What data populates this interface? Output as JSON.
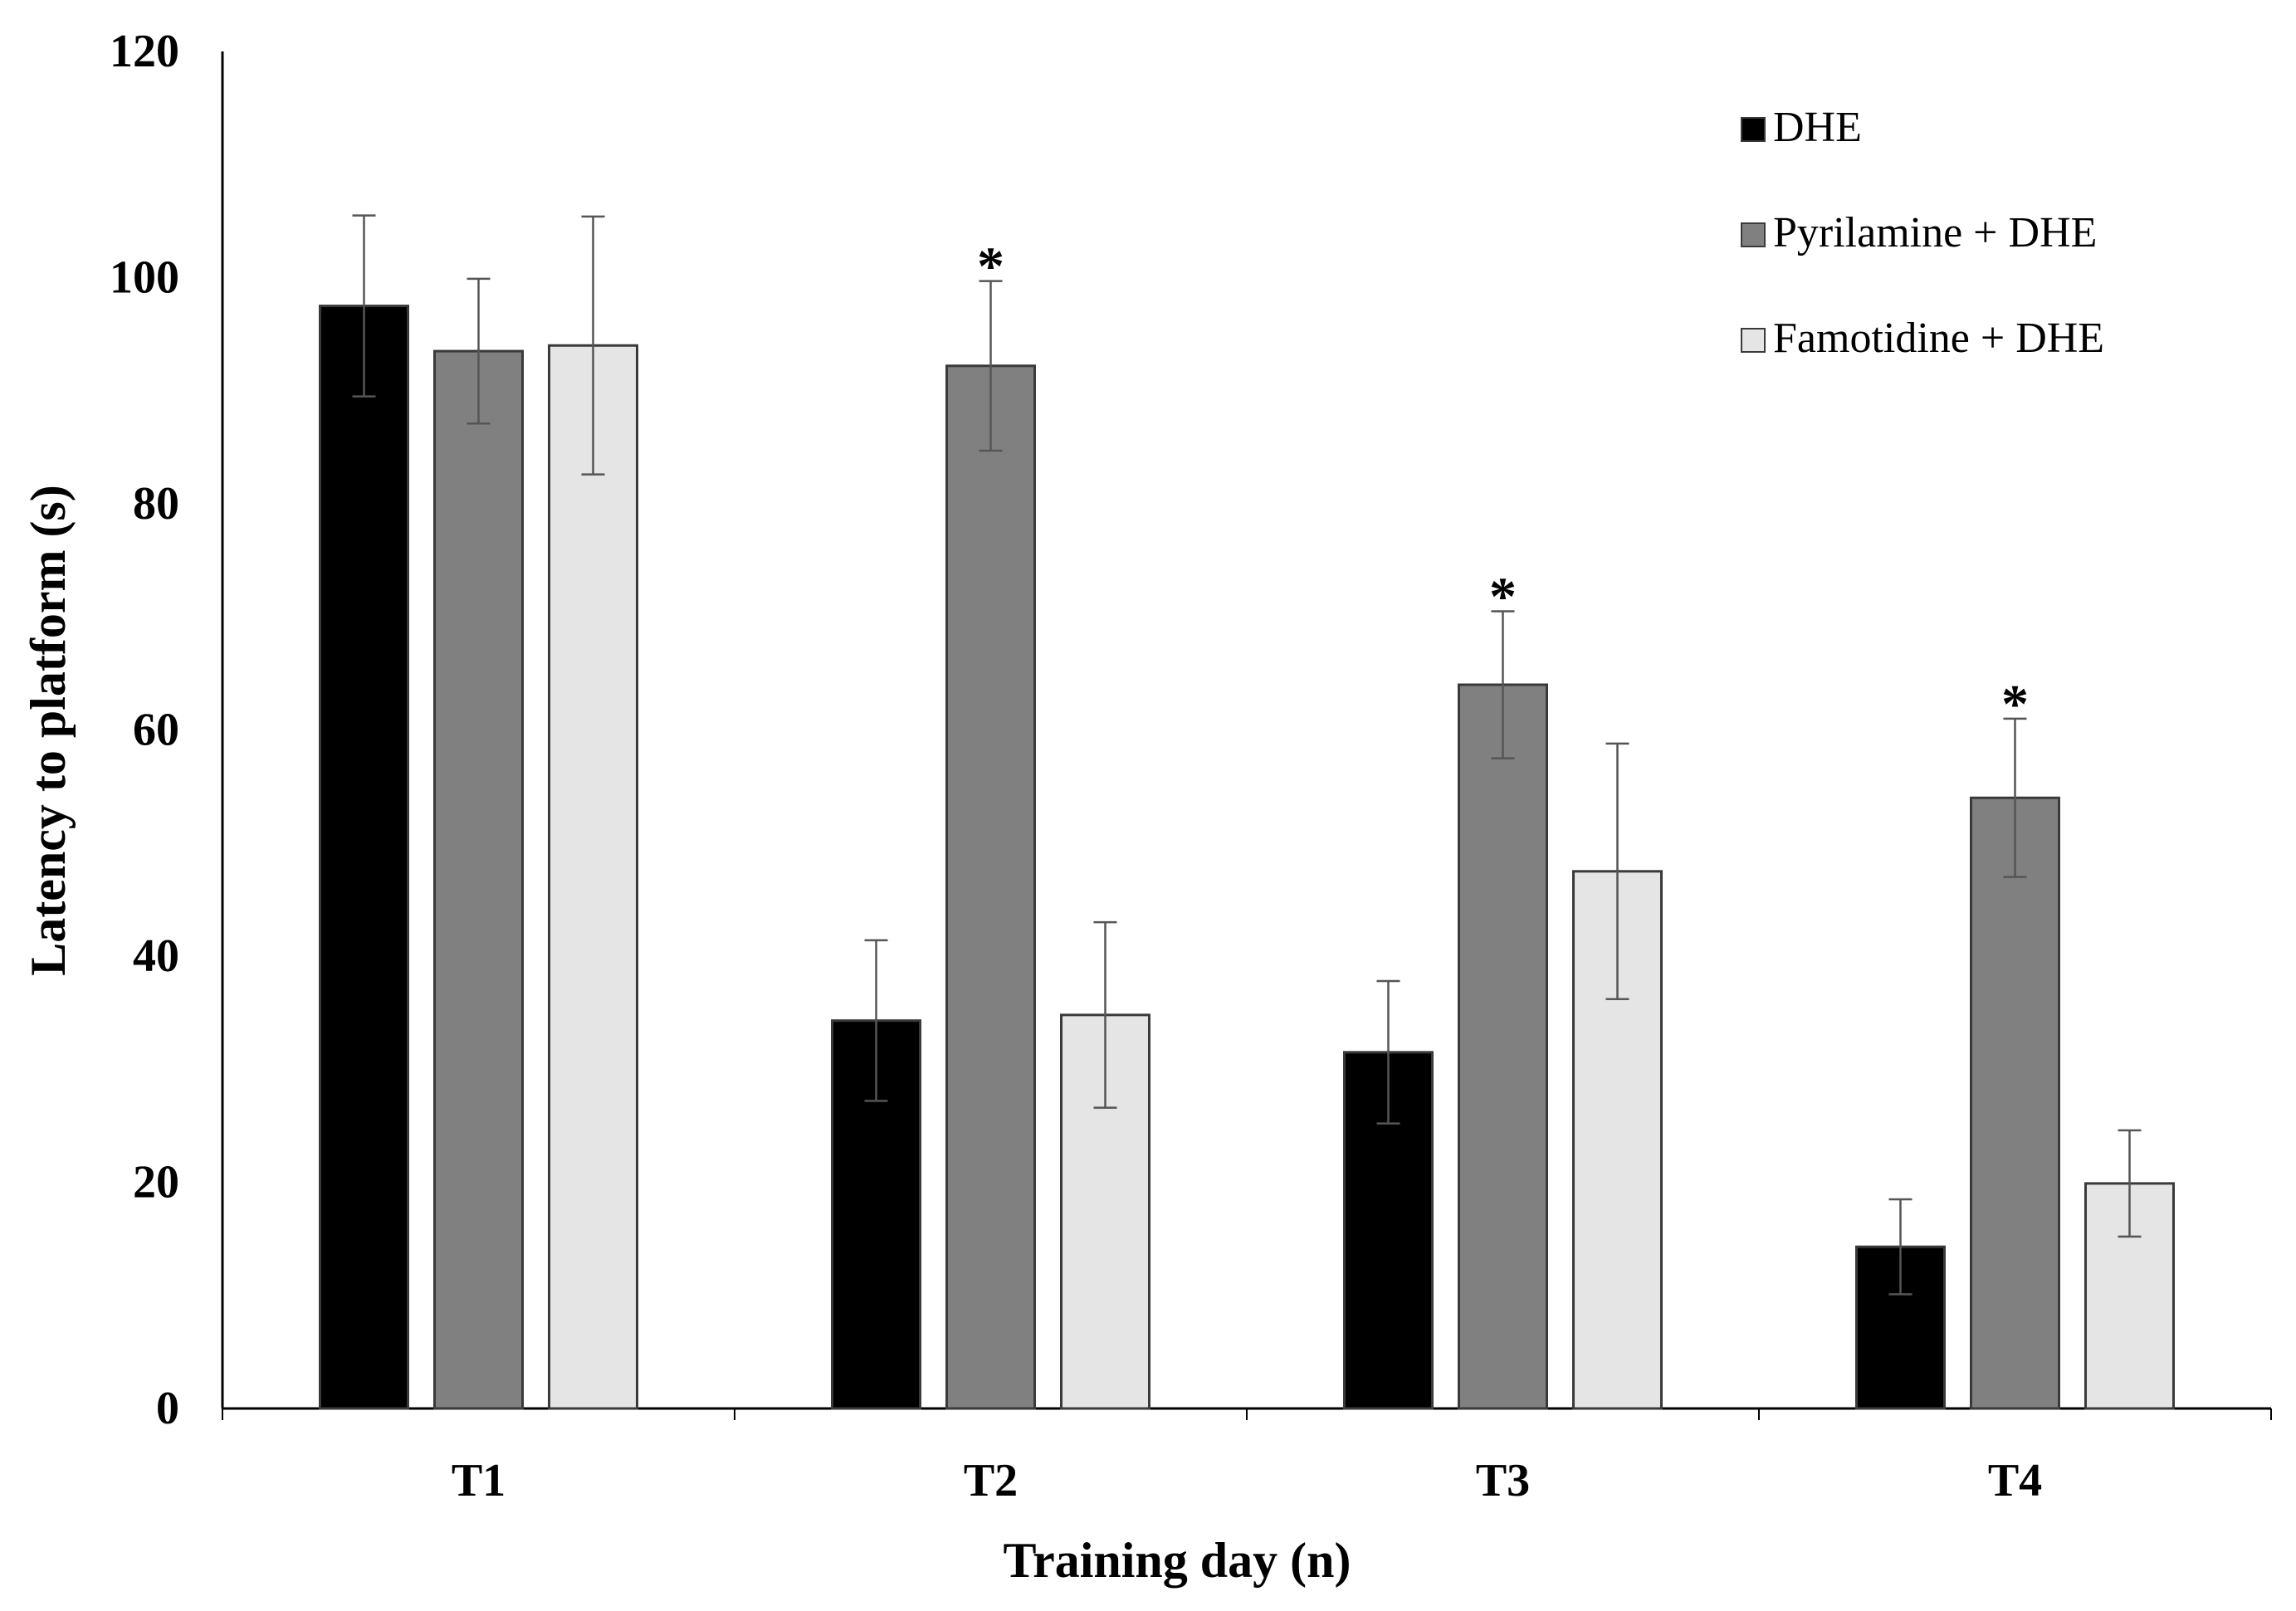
{
  "chart_data": {
    "type": "bar",
    "title": "",
    "xlabel": "Training day (n)",
    "ylabel": "Latency to platform (s)",
    "ylim": [
      0,
      120
    ],
    "yticks": [
      0,
      20,
      40,
      60,
      80,
      100,
      120
    ],
    "ytick_labels": [
      "0",
      "20",
      "40",
      "60",
      "80",
      "100",
      "120"
    ],
    "categories": [
      "T1",
      "T2",
      "T3",
      "T4"
    ],
    "legend_position": "top-right",
    "series": [
      {
        "name": "DHE",
        "color": "#000000",
        "values": [
          97.5,
          34.3,
          31.5,
          14.3
        ],
        "errors": [
          8.0,
          7.1,
          6.3,
          4.2
        ]
      },
      {
        "name": "Pyrilamine + DHE",
        "color": "#808080",
        "values": [
          93.5,
          92.2,
          64.0,
          54.0
        ],
        "errors": [
          6.4,
          7.5,
          6.5,
          7.0
        ]
      },
      {
        "name": "Famotidine + DHE",
        "color": "#e5e5e5",
        "values": [
          94.0,
          34.8,
          47.5,
          19.9
        ],
        "errors": [
          11.4,
          8.2,
          11.3,
          4.7
        ]
      }
    ],
    "annotations": [
      {
        "text": "*",
        "category_index": 1,
        "series_index": 1
      },
      {
        "text": "*",
        "category_index": 2,
        "series_index": 1
      },
      {
        "text": "*",
        "category_index": 3,
        "series_index": 1
      }
    ]
  }
}
